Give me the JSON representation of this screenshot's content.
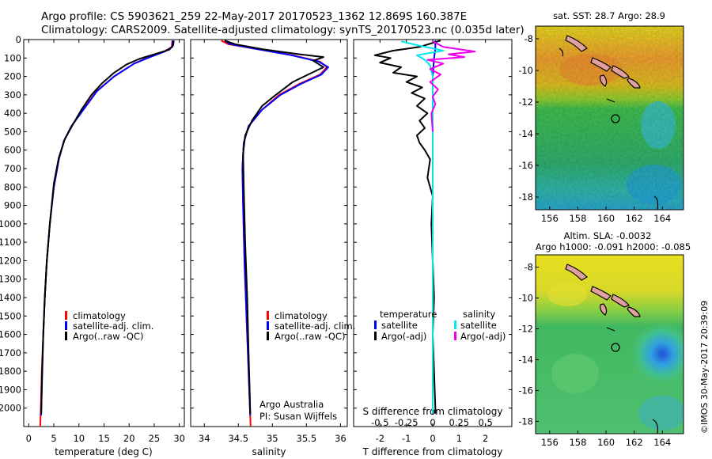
{
  "header": {
    "line1": "Argo profile: CS 5903621_259 22-May-2017 20170523_1362 12.869S 160.387E",
    "line2": "Climatology: CARS2009. Satellite-adjusted climatology: synTS_20170523.nc (0.035d later)"
  },
  "colors": {
    "climatology": "#ff0000",
    "satellite": "#0000ff",
    "argo": "#000000",
    "satellite_s": "#00e5ee",
    "argo_s": "#ee00ee"
  },
  "chart_data": [
    {
      "id": "temperature",
      "type": "line",
      "xlabel": "temperature (deg C)",
      "ylabel": "",
      "xlim": [
        -1,
        31
      ],
      "ylim": [
        2100,
        0
      ],
      "xticks": [
        0,
        5,
        10,
        15,
        20,
        25,
        30
      ],
      "yticks": [
        0,
        100,
        200,
        300,
        400,
        500,
        600,
        700,
        800,
        900,
        1000,
        1100,
        1200,
        1300,
        1400,
        1500,
        1600,
        1700,
        1800,
        1900,
        2000
      ],
      "legend": [
        "climatology",
        "satellite-adj. clim.",
        "Argo(..raw -QC)"
      ],
      "series": [
        {
          "name": "climatology",
          "color_key": "climatology",
          "points": [
            [
              28.6,
              5
            ],
            [
              28.5,
              40
            ],
            [
              27,
              65
            ],
            [
              24,
              95
            ],
            [
              21,
              130
            ],
            [
              17,
              200
            ],
            [
              13.5,
              280
            ],
            [
              10.8,
              380
            ],
            [
              8.5,
              470
            ],
            [
              7,
              550
            ],
            [
              6,
              650
            ],
            [
              5,
              800
            ],
            [
              4.2,
              1000
            ],
            [
              3.6,
              1200
            ],
            [
              3.2,
              1400
            ],
            [
              2.9,
              1600
            ],
            [
              2.6,
              1800
            ],
            [
              2.4,
              2000
            ],
            [
              2.3,
              2100
            ]
          ]
        },
        {
          "name": "satellite-adj. clim.",
          "color_key": "satellite",
          "points": [
            [
              28.7,
              5
            ],
            [
              28.6,
              40
            ],
            [
              27.1,
              65
            ],
            [
              24.2,
              95
            ],
            [
              21,
              130
            ],
            [
              17,
              200
            ],
            [
              13.6,
              280
            ],
            [
              10.9,
              380
            ],
            [
              8.5,
              470
            ],
            [
              7,
              550
            ],
            [
              6,
              650
            ],
            [
              5,
              800
            ],
            [
              4.2,
              1000
            ],
            [
              3.6,
              1200
            ],
            [
              3.2,
              1400
            ],
            [
              2.9,
              1600
            ],
            [
              2.7,
              1800
            ],
            [
              2.5,
              2000
            ],
            [
              2.45,
              2040
            ]
          ]
        },
        {
          "name": "Argo(..raw -QC)",
          "color_key": "argo",
          "points": [
            [
              28.9,
              5
            ],
            [
              28.8,
              30
            ],
            [
              28,
              55
            ],
            [
              25,
              80
            ],
            [
              22,
              105
            ],
            [
              19.5,
              135
            ],
            [
              17,
              180
            ],
            [
              14.5,
              240
            ],
            [
              12.5,
              300
            ],
            [
              10.5,
              380
            ],
            [
              8.8,
              460
            ],
            [
              7.2,
              540
            ],
            [
              6,
              640
            ],
            [
              5,
              780
            ],
            [
              4.2,
              1000
            ],
            [
              3.6,
              1200
            ],
            [
              3.2,
              1400
            ],
            [
              2.9,
              1600
            ],
            [
              2.65,
              1800
            ],
            [
              2.55,
              1950
            ],
            [
              2.5,
              2030
            ]
          ]
        }
      ]
    },
    {
      "id": "salinity",
      "type": "line",
      "xlabel": "salinity",
      "ylabel": "",
      "xlim": [
        33.8,
        36.1
      ],
      "ylim": [
        2100,
        0
      ],
      "xticks": [
        34,
        34.5,
        35,
        35.5,
        36
      ],
      "xticklabels": [
        "34",
        "34.5",
        "35",
        "35.5",
        "36"
      ],
      "yticks": [
        0,
        100,
        200,
        300,
        400,
        500,
        600,
        700,
        800,
        900,
        1000,
        1100,
        1200,
        1300,
        1400,
        1500,
        1600,
        1700,
        1800,
        1900,
        2000
      ],
      "legend": [
        "climatology",
        "satellite-adj. clim.",
        "Argo(..raw -QC)"
      ],
      "annotation": [
        "Argo Australia",
        "PI: Susan Wijffels"
      ],
      "series": [
        {
          "name": "climatology",
          "color_key": "climatology",
          "points": [
            [
              34.25,
              5
            ],
            [
              34.35,
              25
            ],
            [
              34.75,
              50
            ],
            [
              35.3,
              85
            ],
            [
              35.7,
              120
            ],
            [
              35.8,
              150
            ],
            [
              35.7,
              190
            ],
            [
              35.4,
              240
            ],
            [
              35.1,
              300
            ],
            [
              34.85,
              380
            ],
            [
              34.65,
              470
            ],
            [
              34.58,
              560
            ],
            [
              34.56,
              700
            ],
            [
              34.57,
              900
            ],
            [
              34.59,
              1200
            ],
            [
              34.62,
              1500
            ],
            [
              34.65,
              1800
            ],
            [
              34.67,
              2000
            ],
            [
              34.68,
              2100
            ]
          ]
        },
        {
          "name": "satellite-adj. clim.",
          "color_key": "satellite",
          "points": [
            [
              34.3,
              5
            ],
            [
              34.38,
              25
            ],
            [
              34.75,
              50
            ],
            [
              35.28,
              85
            ],
            [
              35.68,
              120
            ],
            [
              35.82,
              150
            ],
            [
              35.72,
              190
            ],
            [
              35.42,
              240
            ],
            [
              35.12,
              300
            ],
            [
              34.85,
              380
            ],
            [
              34.65,
              470
            ],
            [
              34.58,
              560
            ],
            [
              34.56,
              700
            ],
            [
              34.57,
              900
            ],
            [
              34.59,
              1200
            ],
            [
              34.62,
              1500
            ],
            [
              34.65,
              1800
            ],
            [
              34.67,
              2000
            ],
            [
              34.675,
              2040
            ]
          ]
        },
        {
          "name": "Argo(..raw -QC)",
          "color_key": "argo",
          "points": [
            [
              34.3,
              5
            ],
            [
              34.45,
              25
            ],
            [
              34.9,
              55
            ],
            [
              35.4,
              80
            ],
            [
              35.75,
              95
            ],
            [
              35.6,
              115
            ],
            [
              35.75,
              150
            ],
            [
              35.55,
              185
            ],
            [
              35.3,
              230
            ],
            [
              35.05,
              300
            ],
            [
              34.85,
              360
            ],
            [
              34.7,
              440
            ],
            [
              34.6,
              520
            ],
            [
              34.57,
              620
            ],
            [
              34.58,
              800
            ],
            [
              34.6,
              1100
            ],
            [
              34.63,
              1400
            ],
            [
              34.65,
              1700
            ],
            [
              34.67,
              1950
            ],
            [
              34.675,
              2030
            ]
          ]
        }
      ]
    },
    {
      "id": "difference",
      "type": "line",
      "xlabel": "T difference from climatology",
      "xlabel_top": "S difference from climatology",
      "xlim": [
        -3,
        3
      ],
      "ylim": [
        2100,
        0
      ],
      "xticks": [
        -2,
        -1,
        0,
        1,
        2
      ],
      "xticklabels": [
        "-2",
        "-1",
        "0",
        "1",
        "2"
      ],
      "sticks": [
        -2,
        -1,
        0,
        1,
        2
      ],
      "sticklabels": [
        "-0.5",
        "-0.25",
        "0",
        "0.25",
        "0.5"
      ],
      "yticks": [
        0,
        100,
        200,
        300,
        400,
        500,
        600,
        700,
        800,
        900,
        1000,
        1100,
        1200,
        1300,
        1400,
        1500,
        1600,
        1700,
        1800,
        1900,
        2000
      ],
      "legend_t": [
        "temperature",
        "satellite",
        "Argo(-adj)"
      ],
      "legend_s": [
        "salinity",
        "satellite",
        "Argo(-adj)"
      ],
      "series": [
        {
          "name": "T satellite",
          "color_key": "satellite",
          "points": [
            [
              0.1,
              5
            ],
            [
              0.1,
              50
            ],
            [
              0.05,
              100
            ],
            [
              0,
              200
            ],
            [
              0,
              400
            ],
            [
              0,
              800
            ],
            [
              0,
              1200
            ],
            [
              0,
              1600
            ],
            [
              0,
              1900
            ],
            [
              0,
              2030
            ]
          ]
        },
        {
          "name": "T Argo(-adj)",
          "color_key": "argo",
          "points": [
            [
              0.3,
              5
            ],
            [
              -0.5,
              40
            ],
            [
              -1.5,
              60
            ],
            [
              -2.2,
              85
            ],
            [
              -1.6,
              100
            ],
            [
              -2,
              125
            ],
            [
              -1.2,
              150
            ],
            [
              -1.5,
              180
            ],
            [
              -0.6,
              200
            ],
            [
              -1,
              230
            ],
            [
              -0.4,
              260
            ],
            [
              -0.8,
              290
            ],
            [
              -0.3,
              320
            ],
            [
              -0.6,
              360
            ],
            [
              -0.2,
              400
            ],
            [
              -0.5,
              440
            ],
            [
              -0.3,
              480
            ],
            [
              -0.6,
              520
            ],
            [
              -0.5,
              560
            ],
            [
              -0.3,
              600
            ],
            [
              -0.1,
              650
            ],
            [
              -0.2,
              750
            ],
            [
              0,
              850
            ],
            [
              -0.05,
              1000
            ],
            [
              0,
              1200
            ],
            [
              0.05,
              1400
            ],
            [
              0,
              1600
            ],
            [
              0.05,
              1800
            ],
            [
              0.1,
              2000
            ],
            [
              0.1,
              2030
            ]
          ]
        },
        {
          "name": "S satellite",
          "color_key": "satellite_s",
          "points": [
            [
              -1.2,
              10
            ],
            [
              -0.6,
              30
            ],
            [
              0.4,
              60
            ],
            [
              -0.6,
              85
            ],
            [
              -0.3,
              110
            ],
            [
              -0.1,
              140
            ],
            [
              0,
              200
            ],
            [
              0,
              400
            ],
            [
              0,
              800
            ],
            [
              0,
              1200
            ],
            [
              0,
              1600
            ],
            [
              0,
              2030
            ]
          ]
        },
        {
          "name": "S Argo(-adj)",
          "color_key": "argo_s",
          "points": [
            [
              0,
              10
            ],
            [
              0.4,
              40
            ],
            [
              1.6,
              65
            ],
            [
              0.6,
              80
            ],
            [
              1.2,
              95
            ],
            [
              -0.2,
              110
            ],
            [
              0.4,
              130
            ],
            [
              -0.1,
              160
            ],
            [
              0.3,
              190
            ],
            [
              -0.1,
              230
            ],
            [
              0.2,
              270
            ],
            [
              0,
              310
            ],
            [
              0.1,
              350
            ],
            [
              -0.05,
              400
            ],
            [
              0,
              500
            ]
          ]
        }
      ]
    },
    {
      "id": "sst-map",
      "type": "heatmap",
      "title": "sat. SST: 28.7 Argo: 28.9",
      "xlim": [
        155,
        165.5
      ],
      "ylim": [
        -18.8,
        -7.2
      ],
      "xticks": [
        156,
        158,
        160,
        162,
        164
      ],
      "yticks": [
        -8,
        -10,
        -12,
        -14,
        -16,
        -18
      ],
      "float_position": [
        160.387,
        -12.869
      ]
    },
    {
      "id": "sla-map",
      "type": "heatmap",
      "title_lines": [
        "Altim. SLA: -0.0032",
        "Argo h1000: -0.091 h2000: -0.085"
      ],
      "xlim": [
        155,
        165.5
      ],
      "ylim": [
        -18.8,
        -7.2
      ],
      "xticks": [
        156,
        158,
        160,
        162,
        164
      ],
      "yticks": [
        -8,
        -10,
        -12,
        -14,
        -16,
        -18
      ],
      "float_position": [
        160.387,
        -12.869
      ]
    }
  ],
  "credit": "©IMOS 30-May-2017 20:39:09"
}
